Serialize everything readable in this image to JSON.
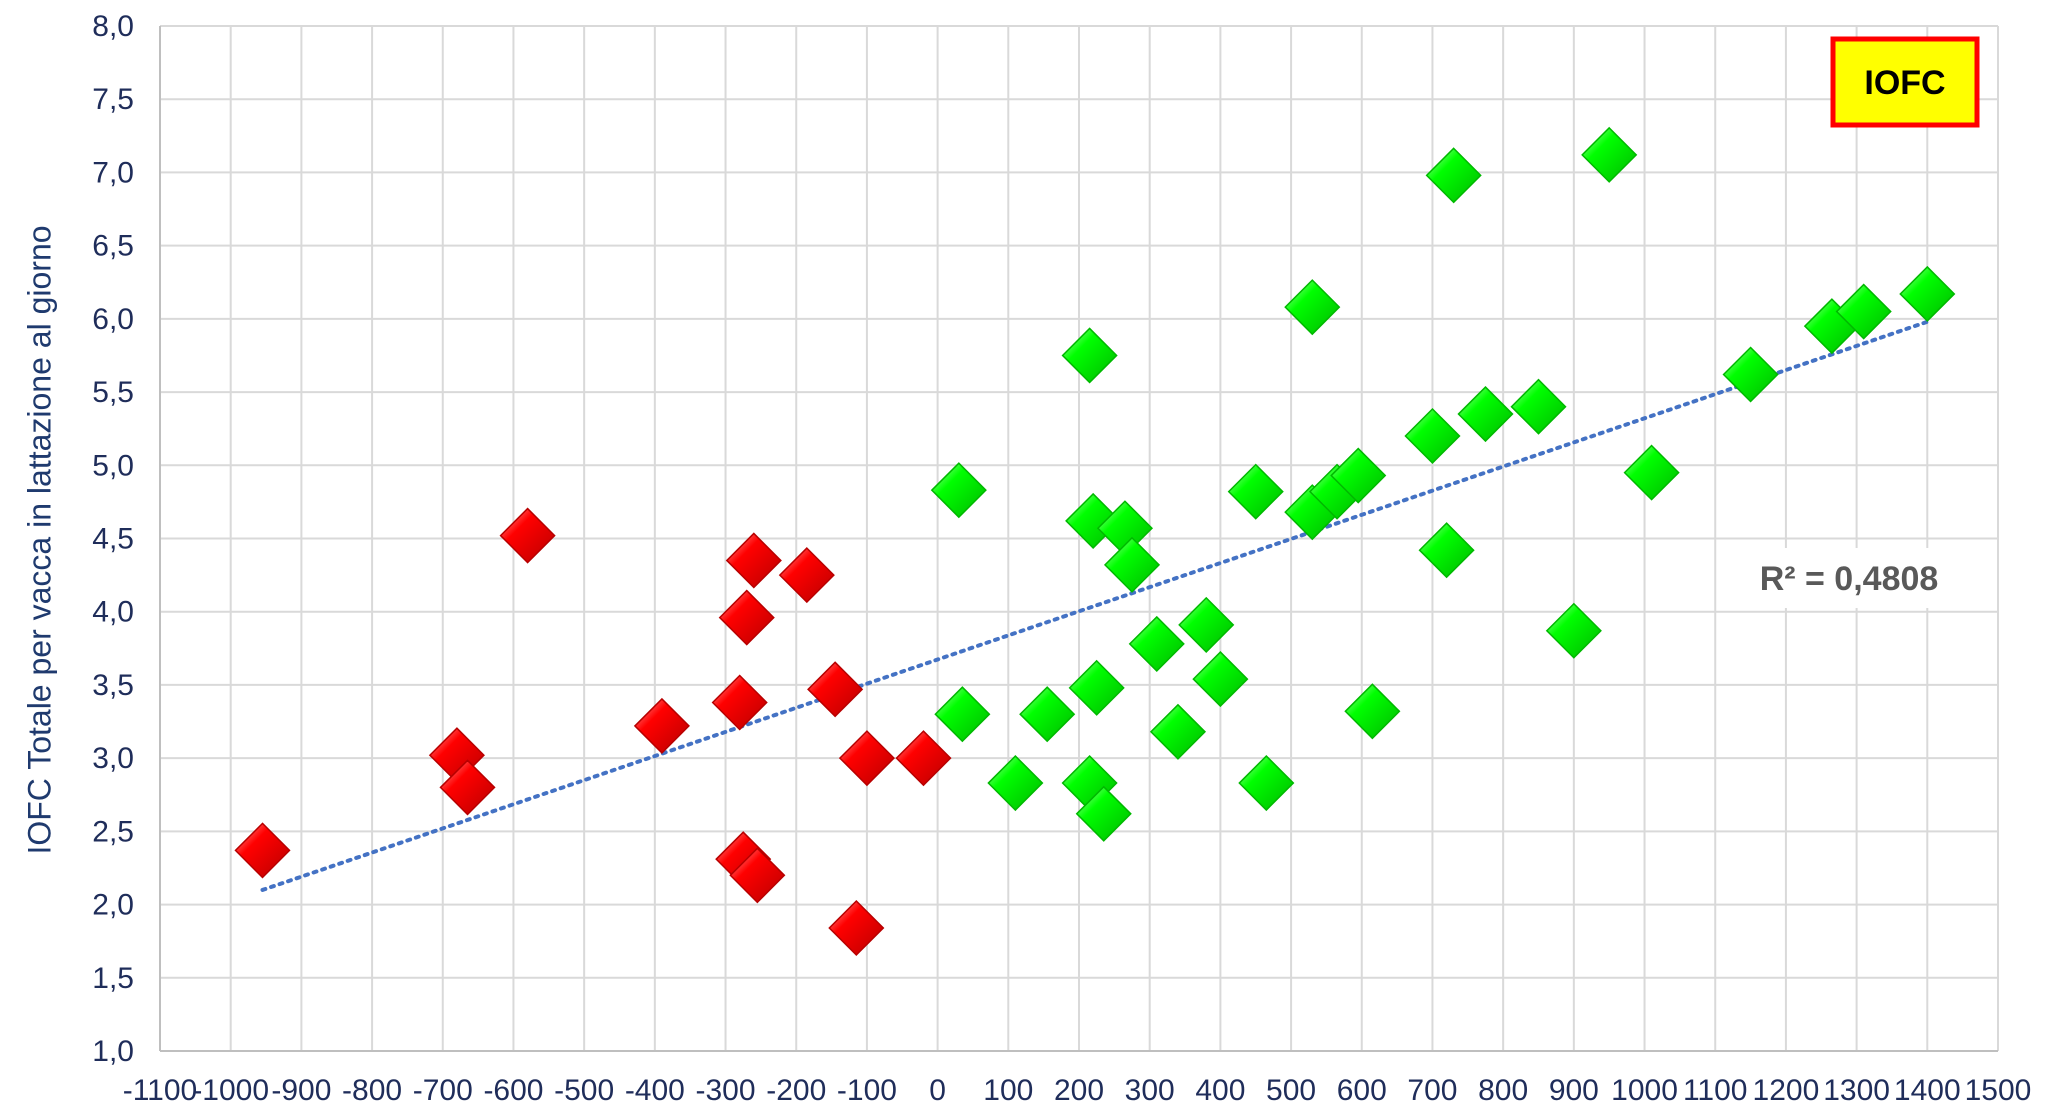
{
  "chart_data": {
    "type": "scatter",
    "title": "",
    "ylabel": "IOFC Totale per vacca in lattazione al giorno",
    "xlabel": "",
    "xlim": [
      -1100,
      1500
    ],
    "ylim": [
      1.0,
      8.0
    ],
    "xtick_labels": [
      "-1100",
      "-1000",
      "-900",
      "-800",
      "-700",
      "-600",
      "-500",
      "-400",
      "-300",
      "-200",
      "-100",
      "0",
      "100",
      "200",
      "300",
      "400",
      "500",
      "600",
      "700",
      "800",
      "900",
      "1000",
      "1100",
      "1200",
      "1300",
      "1400",
      "1500"
    ],
    "ytick_labels": [
      "1,0",
      "1,5",
      "2,0",
      "2,5",
      "3,0",
      "3,5",
      "4,0",
      "4,5",
      "5,0",
      "5,5",
      "6,0",
      "6,5",
      "7,0",
      "7,5",
      "8,0"
    ],
    "grid": true,
    "series": [
      {
        "color": "#ff0000",
        "points": [
          [
            -955,
            2.37
          ],
          [
            -680,
            3.02
          ],
          [
            -665,
            2.8
          ],
          [
            -580,
            4.52
          ],
          [
            -390,
            3.22
          ],
          [
            -280,
            3.38
          ],
          [
            -270,
            3.96
          ],
          [
            -260,
            4.35
          ],
          [
            -275,
            2.31
          ],
          [
            -255,
            2.2
          ],
          [
            -185,
            4.25
          ],
          [
            -145,
            3.47
          ],
          [
            -100,
            3.0
          ],
          [
            -115,
            1.84
          ],
          [
            -20,
            3.0
          ]
        ]
      },
      {
        "color": "#00ff00",
        "points": [
          [
            30,
            4.83
          ],
          [
            35,
            3.3
          ],
          [
            110,
            2.83
          ],
          [
            155,
            3.3
          ],
          [
            215,
            5.75
          ],
          [
            220,
            4.62
          ],
          [
            225,
            3.48
          ],
          [
            215,
            2.83
          ],
          [
            235,
            2.62
          ],
          [
            265,
            4.57
          ],
          [
            275,
            4.32
          ],
          [
            310,
            3.78
          ],
          [
            340,
            3.18
          ],
          [
            380,
            3.91
          ],
          [
            400,
            3.54
          ],
          [
            450,
            4.82
          ],
          [
            465,
            2.83
          ],
          [
            530,
            6.08
          ],
          [
            530,
            4.68
          ],
          [
            565,
            4.82
          ],
          [
            595,
            4.93
          ],
          [
            615,
            3.32
          ],
          [
            700,
            5.2
          ],
          [
            720,
            4.42
          ],
          [
            730,
            6.98
          ],
          [
            775,
            5.35
          ],
          [
            850,
            5.4
          ],
          [
            900,
            3.87
          ],
          [
            950,
            7.12
          ],
          [
            1010,
            4.95
          ],
          [
            1150,
            5.62
          ],
          [
            1265,
            5.95
          ],
          [
            1310,
            6.05
          ],
          [
            1400,
            6.17
          ]
        ]
      }
    ],
    "trendline": {
      "style": "dotted",
      "color": "#4472c4",
      "x": [
        -955,
        1400
      ],
      "y": [
        2.1,
        5.98
      ]
    },
    "annotation_r2": "R² = 0,4808",
    "badge": {
      "text": "IOFC",
      "fill": "#ffff00",
      "border": "#ff0000"
    }
  }
}
